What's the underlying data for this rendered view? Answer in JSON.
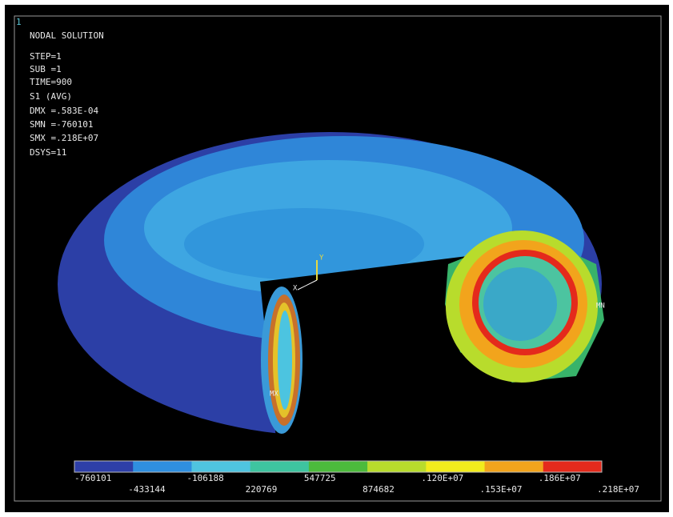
{
  "window_number": "1",
  "info": [
    "NODAL SOLUTION",
    "STEP=1",
    "SUB =1",
    "TIME=900",
    "S1       (AVG)",
    "DMX =.583E-04",
    "SMN =-760101",
    "SMX =.218E+07",
    "DSYS=11"
  ],
  "markers": {
    "min": "MN",
    "max": "MX",
    "y_axis": "Y",
    "x_axis": "X"
  },
  "legend": {
    "labels": [
      "-760101",
      "-433144",
      "-106188",
      "220769",
      "547725",
      "874682",
      ".120E+07",
      ".153E+07",
      ".186E+07",
      ".218E+07"
    ],
    "colors": [
      "#2e3fa8",
      "#2f8fe0",
      "#4fc4e0",
      "#3ec4a0",
      "#4cbb3c",
      "#b8dc2c",
      "#f2ec1c",
      "#f2a41c",
      "#e42a1c"
    ]
  }
}
